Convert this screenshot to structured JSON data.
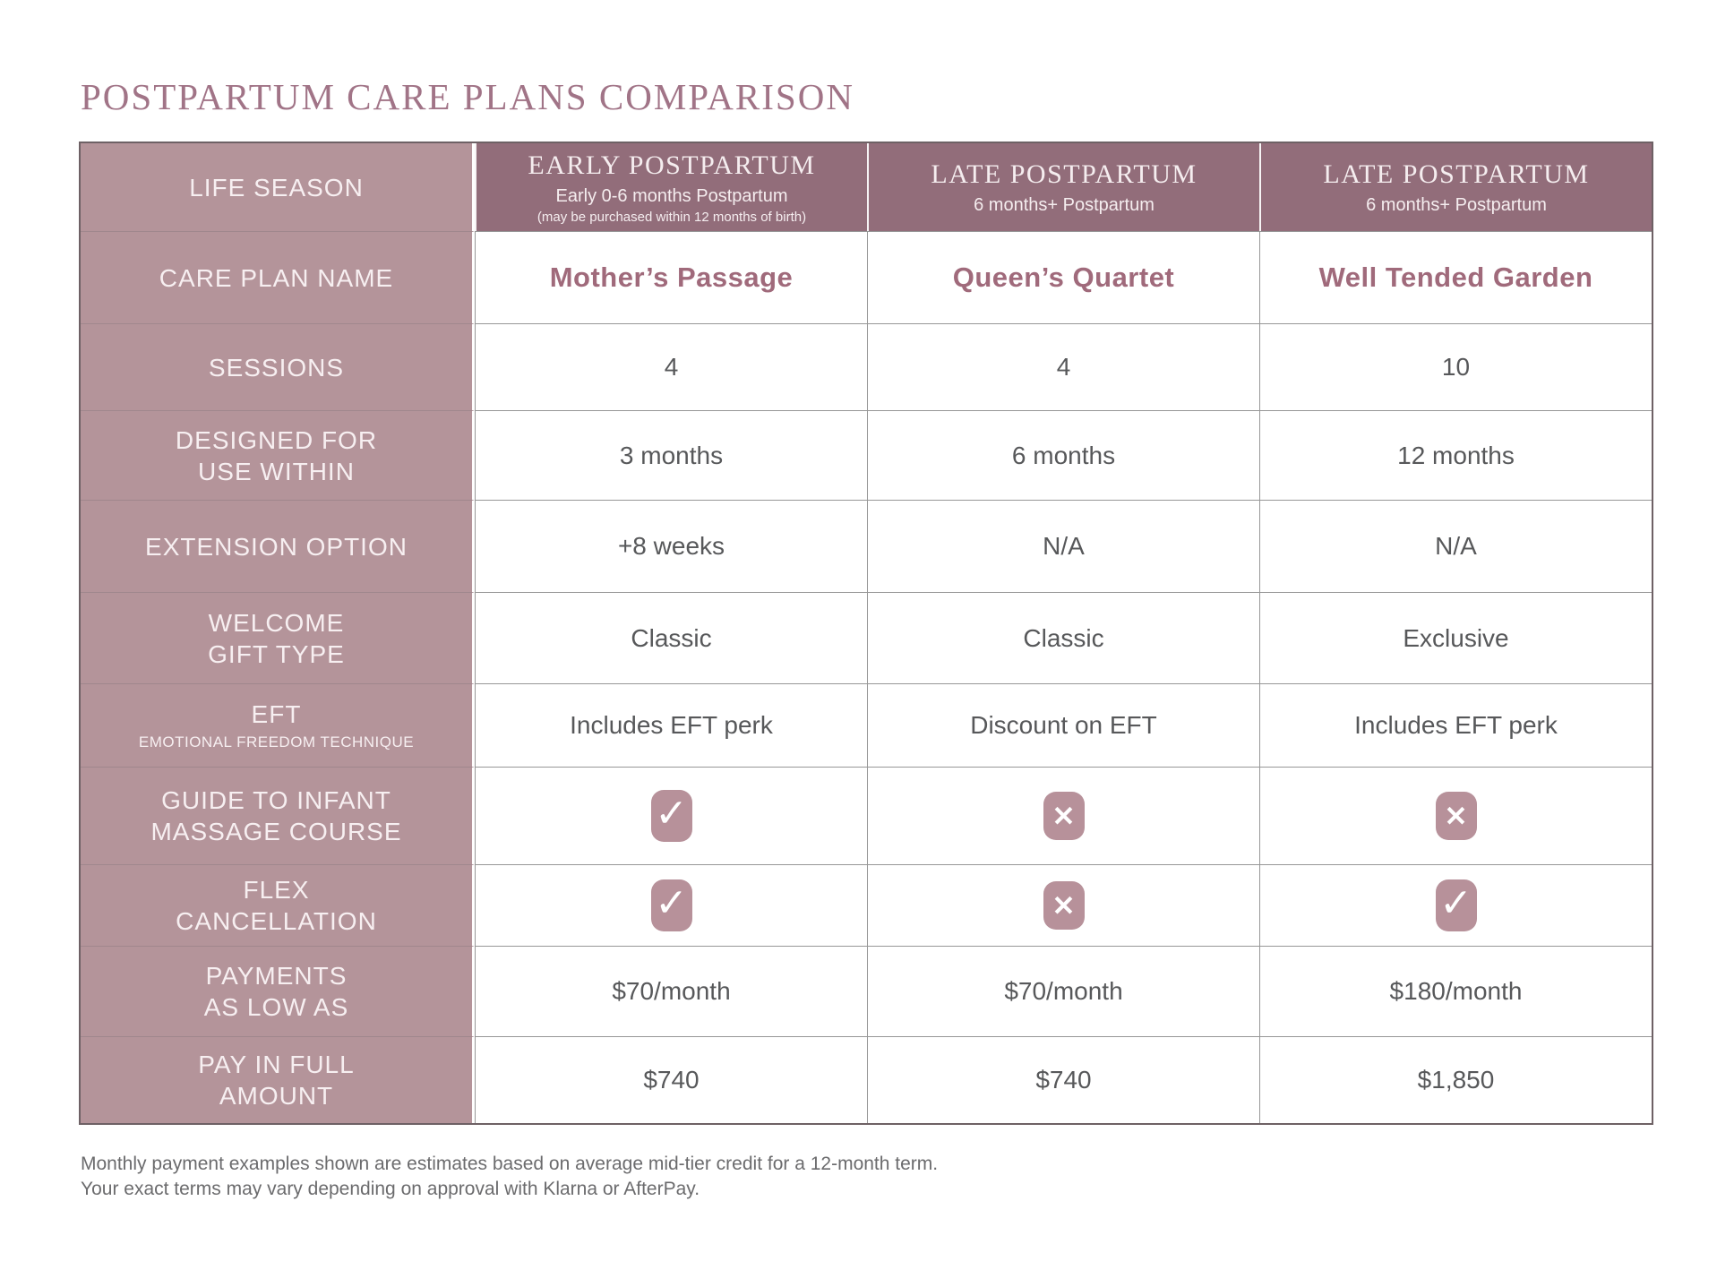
{
  "title": "POSTPARTUM CARE PLANS COMPARISON",
  "row_headers": {
    "life_season": "LIFE SEASON",
    "care_plan_name": "CARE PLAN NAME",
    "sessions": "SESSIONS",
    "designed_for_use_within": "DESIGNED FOR\nUSE WITHIN",
    "extension_option": "EXTENSION OPTION",
    "welcome_gift_type": "WELCOME\nGIFT TYPE",
    "eft": "EFT",
    "eft_sub": "EMOTIONAL FREEDOM TECHNIQUE",
    "guide_to_infant_massage_course": "GUIDE TO INFANT\nMASSAGE COURSE",
    "flex_cancellation": "FLEX\nCANCELLATION",
    "payments_as_low_as": "PAYMENTS\nAS LOW AS",
    "pay_in_full_amount": "PAY IN FULL\nAMOUNT"
  },
  "plans": [
    {
      "season_title": "EARLY POSTPARTUM",
      "season_sub": "Early  0-6 months Postpartum",
      "season_note": "(may be purchased within 12 months of birth)",
      "name": "Mother’s Passage",
      "sessions": "4",
      "designed_for_use_within": "3 months",
      "extension_option": "+8 weeks",
      "welcome_gift_type": "Classic",
      "eft": "Includes EFT perk",
      "guide_to_infant_massage_course": true,
      "flex_cancellation": true,
      "payments_as_low_as": "$70/month",
      "pay_in_full_amount": "$740"
    },
    {
      "season_title": "LATE POSTPARTUM",
      "season_sub": "6 months+ Postpartum",
      "season_note": "",
      "name": "Queen’s Quartet",
      "sessions": "4",
      "designed_for_use_within": "6 months",
      "extension_option": "N/A",
      "welcome_gift_type": "Classic",
      "eft": "Discount on EFT",
      "guide_to_infant_massage_course": false,
      "flex_cancellation": false,
      "payments_as_low_as": "$70/month",
      "pay_in_full_amount": "$740"
    },
    {
      "season_title": "LATE POSTPARTUM",
      "season_sub": "6 months+ Postpartum",
      "season_note": "",
      "name": "Well Tended Garden",
      "sessions": "10",
      "designed_for_use_within": "12 months",
      "extension_option": "N/A",
      "welcome_gift_type": "Exclusive",
      "eft": "Includes EFT perk",
      "guide_to_infant_massage_course": false,
      "flex_cancellation": true,
      "payments_as_low_as": "$180/month",
      "pay_in_full_amount": "$1,850"
    }
  ],
  "icons": {
    "check": "✓",
    "cross": "✕"
  },
  "colors": {
    "header_bg": "#926d7a",
    "label_column_bg": "#b4949a",
    "badge_bg": "#b7919a",
    "accent_text": "#a06a7b",
    "title_text": "#a17487",
    "body_text": "#57585a"
  },
  "footer": {
    "line1": "Monthly payment examples shown are estimates based on average mid-tier credit for a 12-month term.",
    "line2": "Your exact terms may vary depending on approval with Klarna or AfterPay."
  }
}
